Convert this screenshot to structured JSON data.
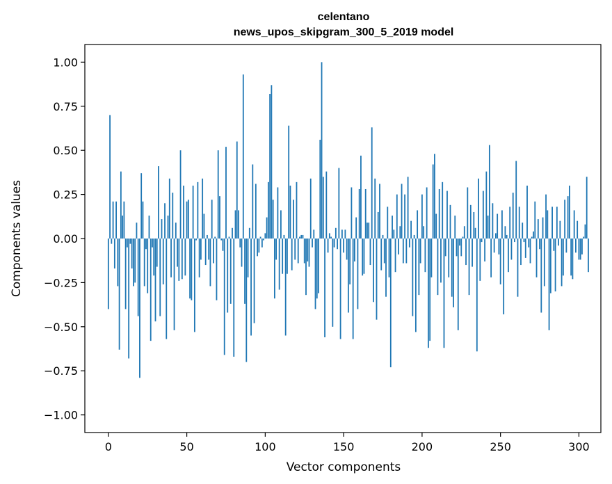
{
  "chart_data": {
    "type": "bar",
    "title": "celentano",
    "subtitle": "news_upos_skipgram_300_5_2019 model",
    "xlabel": "Vector components",
    "ylabel": "Components values",
    "xlim": [
      -15,
      314
    ],
    "ylim": [
      -1.1,
      1.1
    ],
    "xticks": [
      0,
      50,
      100,
      150,
      200,
      250,
      300
    ],
    "yticks": [
      -1.0,
      -0.75,
      -0.5,
      -0.25,
      0.0,
      0.25,
      0.5,
      0.75,
      1.0
    ],
    "xtick_labels": [
      "0",
      "50",
      "100",
      "150",
      "200",
      "250",
      "300"
    ],
    "ytick_labels": [
      "−1.00",
      "−0.75",
      "−0.50",
      "−0.25",
      "0.00",
      "0.25",
      "0.50",
      "0.75",
      "1.00"
    ],
    "bar_color": "#1f77b4",
    "grid": false,
    "x_start": 0,
    "values": [
      -0.4,
      0.7,
      -0.03,
      0.21,
      -0.17,
      0.21,
      -0.27,
      -0.63,
      0.38,
      0.13,
      0.21,
      -0.4,
      -0.05,
      -0.68,
      -0.03,
      -0.17,
      -0.27,
      -0.25,
      0.09,
      -0.44,
      -0.79,
      0.37,
      0.21,
      -0.27,
      -0.06,
      -0.31,
      0.13,
      -0.58,
      -0.05,
      -0.21,
      -0.47,
      -0.16,
      0.41,
      -0.44,
      0.11,
      -0.26,
      0.2,
      -0.57,
      0.13,
      0.34,
      -0.22,
      0.26,
      -0.52,
      0.09,
      -0.16,
      -0.24,
      0.5,
      -0.23,
      0.3,
      -0.21,
      0.21,
      0.22,
      -0.34,
      -0.35,
      0.3,
      -0.53,
      -0.01,
      0.32,
      -0.22,
      -0.12,
      0.34,
      0.14,
      -0.15,
      0.02,
      -0.12,
      -0.27,
      0.22,
      -0.14,
      0.01,
      -0.35,
      0.5,
      0.24,
      -0.01,
      -0.07,
      -0.66,
      0.52,
      -0.42,
      0.01,
      -0.37,
      0.06,
      -0.67,
      0.16,
      0.55,
      0.16,
      -0.05,
      -0.16,
      0.93,
      -0.37,
      -0.7,
      -0.22,
      0.06,
      -0.55,
      0.42,
      -0.48,
      0.31,
      -0.1,
      -0.08,
      0.01,
      -0.05,
      -0.01,
      0.03,
      0.12,
      0.32,
      0.82,
      0.87,
      0.22,
      -0.34,
      -0.12,
      0.29,
      -0.29,
      0.16,
      -0.2,
      0.02,
      -0.55,
      -0.2,
      0.64,
      0.3,
      -0.18,
      0.22,
      -0.12,
      0.32,
      -0.14,
      0.01,
      0.02,
      0.02,
      -0.14,
      -0.32,
      -0.13,
      -0.16,
      0.34,
      -0.05,
      0.05,
      -0.4,
      -0.34,
      -0.31,
      0.56,
      1.0,
      0.35,
      -0.56,
      0.38,
      -0.08,
      0.03,
      0.01,
      -0.5,
      -0.05,
      0.06,
      -0.06,
      0.4,
      -0.57,
      0.05,
      -0.08,
      0.05,
      -0.12,
      -0.42,
      -0.26,
      0.29,
      -0.57,
      -0.13,
      0.12,
      -0.4,
      0.28,
      0.47,
      -0.21,
      -0.2,
      0.28,
      0.09,
      0.09,
      -0.15,
      0.63,
      -0.36,
      0.34,
      -0.46,
      0.15,
      0.31,
      -0.18,
      0.02,
      -0.14,
      -0.33,
      0.18,
      -0.22,
      -0.73,
      0.13,
      0.05,
      -0.19,
      0.25,
      -0.09,
      0.07,
      0.31,
      -0.14,
      0.25,
      -0.14,
      0.35,
      -0.05,
      0.1,
      -0.44,
      0.02,
      -0.53,
      0.16,
      -0.32,
      -0.14,
      0.25,
      0.07,
      -0.19,
      0.29,
      -0.62,
      -0.58,
      -0.22,
      0.42,
      0.48,
      0.14,
      -0.32,
      0.28,
      -0.25,
      0.32,
      -0.62,
      -0.1,
      0.27,
      -0.22,
      0.19,
      -0.33,
      -0.39,
      0.13,
      -0.1,
      -0.52,
      -0.04,
      -0.1,
      0.01,
      0.07,
      -0.15,
      0.29,
      -0.32,
      0.19,
      -0.16,
      0.15,
      0.06,
      -0.64,
      0.34,
      -0.24,
      -0.02,
      0.27,
      -0.13,
      0.38,
      0.13,
      0.53,
      -0.22,
      0.2,
      -0.08,
      0.03,
      0.14,
      -0.09,
      -0.26,
      0.16,
      -0.43,
      0.07,
      0.02,
      -0.19,
      0.18,
      -0.12,
      0.26,
      -0.02,
      0.44,
      -0.33,
      0.18,
      -0.15,
      0.09,
      -0.02,
      -0.11,
      0.3,
      -0.05,
      -0.14,
      0.01,
      0.04,
      0.21,
      -0.22,
      0.11,
      -0.06,
      -0.42,
      0.12,
      -0.27,
      0.25,
      0.16,
      -0.52,
      -0.31,
      0.18,
      -0.07,
      -0.3,
      0.18,
      -0.04,
      0.1,
      -0.27,
      -0.21,
      0.22,
      -0.08,
      0.24,
      0.3,
      -0.21,
      -0.23,
      0.16,
      -0.08,
      0.1,
      -0.12,
      -0.12,
      -0.09,
      0.01,
      0.08,
      0.35,
      -0.19
    ]
  }
}
